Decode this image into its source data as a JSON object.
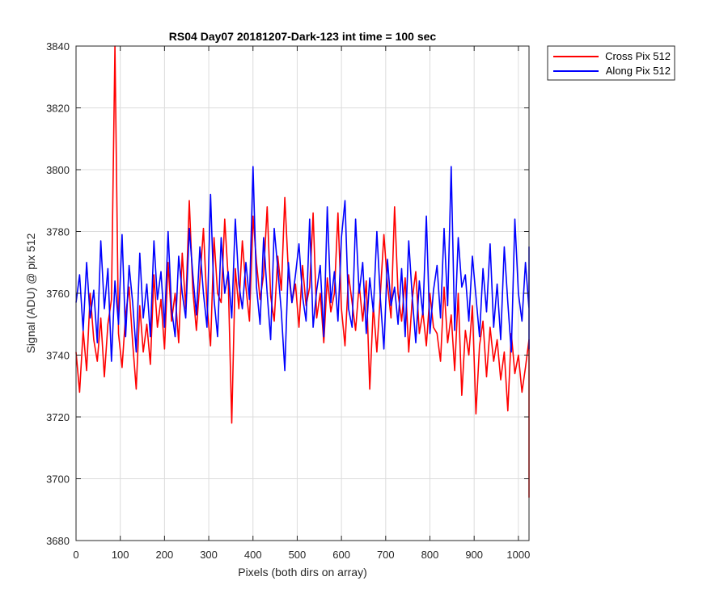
{
  "chart_data": {
    "type": "line",
    "title": "RS04 Day07 20181207-Dark-123 int time = 100 sec",
    "xlabel": "Pixels (both dirs on array)",
    "ylabel": "Signal (ADU) @ pix 512",
    "xlim": [
      0,
      1024
    ],
    "ylim": [
      3680,
      3840
    ],
    "xticks": [
      0,
      100,
      200,
      300,
      400,
      500,
      600,
      700,
      800,
      900,
      1000
    ],
    "yticks": [
      3680,
      3700,
      3720,
      3740,
      3760,
      3780,
      3800,
      3820,
      3840
    ],
    "grid": true,
    "legend_position": "outside-top-right",
    "series": [
      {
        "name": "Cross Pix 512",
        "color": "#ff0000",
        "x_step": 8,
        "values": [
          3741,
          3728,
          3748,
          3735,
          3760,
          3745,
          3738,
          3752,
          3733,
          3750,
          3758,
          3840,
          3747,
          3736,
          3753,
          3762,
          3744,
          3729,
          3756,
          3741,
          3750,
          3737,
          3766,
          3749,
          3758,
          3742,
          3770,
          3751,
          3760,
          3744,
          3773,
          3755,
          3790,
          3761,
          3748,
          3764,
          3781,
          3756,
          3743,
          3778,
          3760,
          3757,
          3784,
          3765,
          3718,
          3768,
          3755,
          3777,
          3762,
          3751,
          3785,
          3770,
          3758,
          3766,
          3788,
          3759,
          3751,
          3772,
          3761,
          3791,
          3767,
          3757,
          3763,
          3749,
          3769,
          3756,
          3762,
          3786,
          3752,
          3760,
          3744,
          3765,
          3754,
          3760,
          3786,
          3755,
          3743,
          3766,
          3757,
          3748,
          3763,
          3751,
          3764,
          3729,
          3756,
          3741,
          3760,
          3779,
          3763,
          3752,
          3788,
          3760,
          3751,
          3765,
          3741,
          3758,
          3767,
          3747,
          3754,
          3743,
          3760,
          3749,
          3747,
          3738,
          3762,
          3744,
          3753,
          3735,
          3760,
          3727,
          3748,
          3740,
          3756,
          3721,
          3743,
          3751,
          3733,
          3749,
          3738,
          3745,
          3732,
          3741,
          3722,
          3747,
          3734,
          3740,
          3728,
          3736,
          3745,
          3726,
          3742,
          3719,
          3737,
          3694,
          3727,
          3745
        ]
      },
      {
        "name": "Along Pix 512",
        "color": "#0000ff",
        "x_step": 8,
        "values": [
          3757,
          3766,
          3748,
          3770,
          3752,
          3761,
          3744,
          3777,
          3755,
          3768,
          3738,
          3764,
          3750,
          3779,
          3746,
          3769,
          3757,
          3741,
          3773,
          3752,
          3763,
          3746,
          3777,
          3758,
          3767,
          3749,
          3780,
          3755,
          3746,
          3772,
          3760,
          3752,
          3781,
          3766,
          3753,
          3775,
          3760,
          3749,
          3792,
          3758,
          3746,
          3778,
          3760,
          3767,
          3752,
          3784,
          3763,
          3755,
          3770,
          3758,
          3801,
          3762,
          3750,
          3778,
          3760,
          3745,
          3781,
          3768,
          3754,
          3735,
          3770,
          3757,
          3766,
          3776,
          3759,
          3751,
          3784,
          3749,
          3761,
          3769,
          3746,
          3788,
          3757,
          3767,
          3751,
          3778,
          3790,
          3755,
          3749,
          3784,
          3760,
          3770,
          3747,
          3765,
          3754,
          3780,
          3758,
          3742,
          3771,
          3756,
          3762,
          3750,
          3768,
          3746,
          3777,
          3759,
          3744,
          3764,
          3753,
          3785,
          3747,
          3761,
          3769,
          3752,
          3781,
          3756,
          3801,
          3748,
          3778,
          3762,
          3766,
          3751,
          3772,
          3759,
          3746,
          3768,
          3754,
          3776,
          3749,
          3763,
          3745,
          3775,
          3757,
          3741,
          3784,
          3760,
          3751,
          3770,
          3755,
          3742,
          3775,
          3758,
          3749,
          3763,
          3754,
          3766,
          3750,
          3773
        ]
      }
    ]
  }
}
